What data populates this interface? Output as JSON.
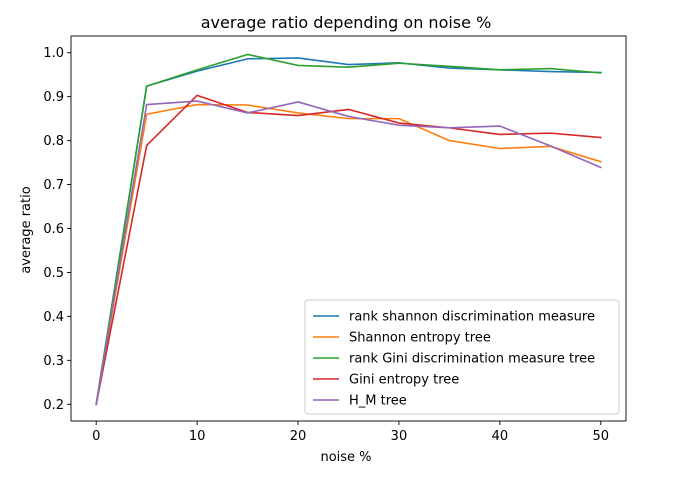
{
  "chart_data": {
    "type": "line",
    "title": "average ratio depending on noise %",
    "xlabel": "noise %",
    "ylabel": "average ratio",
    "xlim": [
      -2.5,
      52.5
    ],
    "ylim": [
      0.162,
      1.038
    ],
    "xticks": [
      0,
      10,
      20,
      30,
      40,
      50
    ],
    "yticks": [
      0.2,
      0.3,
      0.4,
      0.5,
      0.6,
      0.7,
      0.8,
      0.9,
      1.0
    ],
    "ytick_labels": [
      "0.2",
      "0.3",
      "0.4",
      "0.5",
      "0.6",
      "0.7",
      "0.8",
      "0.9",
      "1.0"
    ],
    "grid": false,
    "legend_position": "lower-right",
    "x": [
      0,
      5,
      10,
      15,
      20,
      25,
      30,
      35,
      40,
      45,
      50
    ],
    "series": [
      {
        "name": "rank shannon discrimination measure",
        "color": "#1f77b4",
        "values": [
          0.2,
          0.924,
          0.958,
          0.986,
          0.988,
          0.973,
          0.977,
          0.965,
          0.961,
          0.957,
          0.955
        ]
      },
      {
        "name": "Shannon entropy tree",
        "color": "#ff7f0e",
        "values": [
          0.2,
          0.86,
          0.882,
          0.881,
          0.863,
          0.85,
          0.85,
          0.8,
          0.782,
          0.787,
          0.752
        ]
      },
      {
        "name": "rank Gini discrimination measure tree",
        "color": "#2ca02c",
        "values": [
          0.2,
          0.924,
          0.961,
          0.996,
          0.971,
          0.967,
          0.976,
          0.969,
          0.961,
          0.964,
          0.954
        ]
      },
      {
        "name": "Gini entropy tree",
        "color": "#d62728",
        "values": [
          0.2,
          0.789,
          0.903,
          0.864,
          0.857,
          0.871,
          0.84,
          0.829,
          0.814,
          0.817,
          0.807
        ]
      },
      {
        "name": "H_M tree",
        "color": "#9467bd",
        "values": [
          0.2,
          0.882,
          0.89,
          0.863,
          0.888,
          0.855,
          0.835,
          0.829,
          0.833,
          0.788,
          0.739
        ]
      }
    ]
  }
}
